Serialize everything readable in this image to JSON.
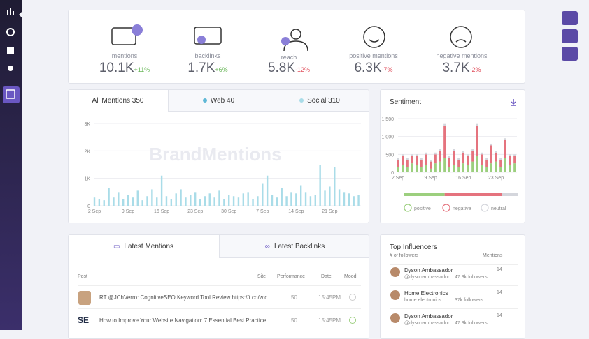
{
  "kpis": [
    {
      "label": "mentions",
      "value": "10.1K",
      "change": "+11%"
    },
    {
      "label": "backlinks",
      "value": "1.7K",
      "change": "+6%"
    },
    {
      "label": "reach",
      "value": "5.8K",
      "change": "-12%"
    },
    {
      "label": "positive mentions",
      "value": "6.3K",
      "change": "-7%"
    },
    {
      "label": "negative mentions",
      "value": "3.7K",
      "change": "-2%"
    }
  ],
  "mention_tabs": [
    "All Mentions 350",
    "Web 40",
    "Social 310"
  ],
  "watermark": "BrandMentions",
  "chart_data": [
    {
      "type": "bar",
      "categories": [
        "2 Sep",
        null,
        null,
        null,
        null,
        null,
        null,
        "9 Sep",
        null,
        null,
        null,
        null,
        null,
        null,
        "16 Sep",
        null,
        null,
        null,
        null,
        null,
        null,
        "23 Sep",
        null,
        null,
        null,
        null,
        null,
        null,
        "30 Sep",
        null,
        null,
        null,
        null,
        null,
        null,
        "7 Sep",
        null,
        null,
        null,
        null,
        null,
        null,
        "14 Sep",
        null,
        null,
        null,
        null,
        null,
        null,
        "21 Sep",
        null,
        null,
        null,
        null,
        null,
        null
      ],
      "values": [
        300,
        250,
        200,
        650,
        300,
        500,
        250,
        400,
        300,
        550,
        200,
        350,
        600,
        300,
        1100,
        350,
        250,
        450,
        600,
        300,
        400,
        500,
        250,
        350,
        450,
        300,
        550,
        250,
        400,
        350,
        300,
        450,
        500,
        250,
        350,
        800,
        1100,
        400,
        300,
        650,
        350,
        500,
        450,
        750,
        500,
        350,
        400,
        1500,
        550,
        700,
        1400,
        600,
        500,
        450,
        350,
        400
      ],
      "color": "#a9dce8",
      "ylim": [
        0,
        3000
      ],
      "yticks": [
        0,
        {
          "value": 1000,
          "label": "1K"
        },
        {
          "value": 2000,
          "label": "2K"
        },
        {
          "value": 3000,
          "label": "3K"
        }
      ],
      "grid": true
    },
    {
      "type": "stacked-bar",
      "title": "Sentiment",
      "categories": [
        "2 Sep",
        null,
        null,
        null,
        null,
        null,
        null,
        "9 Sep",
        null,
        null,
        null,
        null,
        null,
        null,
        "16 Sep",
        null,
        null,
        null,
        null,
        null,
        null,
        "23 Sep",
        null,
        null,
        null,
        null
      ],
      "series": [
        {
          "name": "positive",
          "color": "#9ccf7e",
          "values": [
            150,
            200,
            150,
            250,
            200,
            150,
            200,
            100,
            250,
            300,
            400,
            150,
            200,
            150,
            250,
            200,
            300,
            450,
            200,
            150,
            250,
            300,
            150,
            400,
            200,
            250
          ]
        },
        {
          "name": "negative",
          "color": "#e5737e",
          "values": [
            200,
            250,
            200,
            200,
            250,
            200,
            300,
            200,
            250,
            300,
            900,
            250,
            400,
            200,
            300,
            250,
            300,
            850,
            300,
            200,
            500,
            250,
            200,
            500,
            250,
            200
          ]
        },
        {
          "name": "neutral",
          "color": "#d4d6dc",
          "values": [
            50,
            50,
            50,
            50,
            50,
            50,
            50,
            50,
            50,
            50,
            50,
            50,
            50,
            50,
            50,
            50,
            50,
            50,
            50,
            50,
            50,
            50,
            50,
            50,
            50,
            50
          ]
        }
      ],
      "share": [
        36,
        50,
        14
      ],
      "ylim": [
        0,
        1500
      ],
      "yticks": [
        0,
        500,
        {
          "value": 1000,
          "label": "1,000"
        },
        {
          "value": 1500,
          "label": "1,500"
        }
      ],
      "grid": true
    }
  ],
  "latest_tabs": [
    "Latest Mentions",
    "Latest Backlinks"
  ],
  "latest_table": {
    "headers": [
      "Post",
      "Site",
      "Performance",
      "Date",
      "Mood"
    ],
    "rows": [
      [
        "RT @JChVerro: CognitiveSEO Keyword Tool Review https://t.co/wlc",
        "50",
        "15:45PM"
      ],
      [
        "How to Improve Your Website Navigation: 7 Essential Best Practice",
        "50",
        "15:45PM"
      ]
    ]
  },
  "influencers": {
    "title": "Top Influencers",
    "sort": "# of followers",
    "mentions_header": "Mentions",
    "rows": [
      {
        "name": "Dyson Ambassador",
        "handle": "@dysonambassador",
        "followers": "47.3k followers",
        "mentions": "14"
      },
      {
        "name": "Home Electronics",
        "handle": "home.electronics",
        "followers": "37k followers",
        "mentions": "14"
      },
      {
        "name": "Dyson Ambassador",
        "handle": "@dysonambassador",
        "followers": "47.3k followers",
        "mentions": "14"
      }
    ]
  }
}
